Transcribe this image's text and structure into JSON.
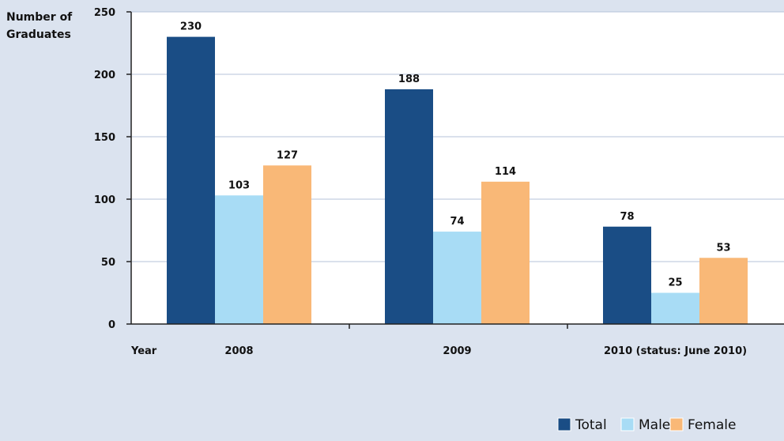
{
  "chart_data": {
    "type": "bar",
    "title": "",
    "ylabel_lines": [
      "Number of",
      "Graduates"
    ],
    "xlabel": "Year",
    "categories": [
      "2008",
      "2009",
      "2010 (status: June 2010)"
    ],
    "series": [
      {
        "name": "Total",
        "color": "#1a4d85",
        "values": [
          230,
          188,
          78
        ]
      },
      {
        "name": "Male",
        "color": "#a8dcf5",
        "values": [
          103,
          74,
          25
        ]
      },
      {
        "name": "Female",
        "color": "#f9b877",
        "values": [
          127,
          114,
          53
        ]
      }
    ],
    "ylim": [
      0,
      250
    ],
    "yticks": [
      0,
      50,
      100,
      150,
      200,
      250
    ],
    "grid": true,
    "legend_position": "bottom-right"
  },
  "colors": {
    "plot_background": "#ffffff",
    "page_background": "#dbe3ef",
    "gridline": "#b4c3d8",
    "axis": "#222222"
  }
}
